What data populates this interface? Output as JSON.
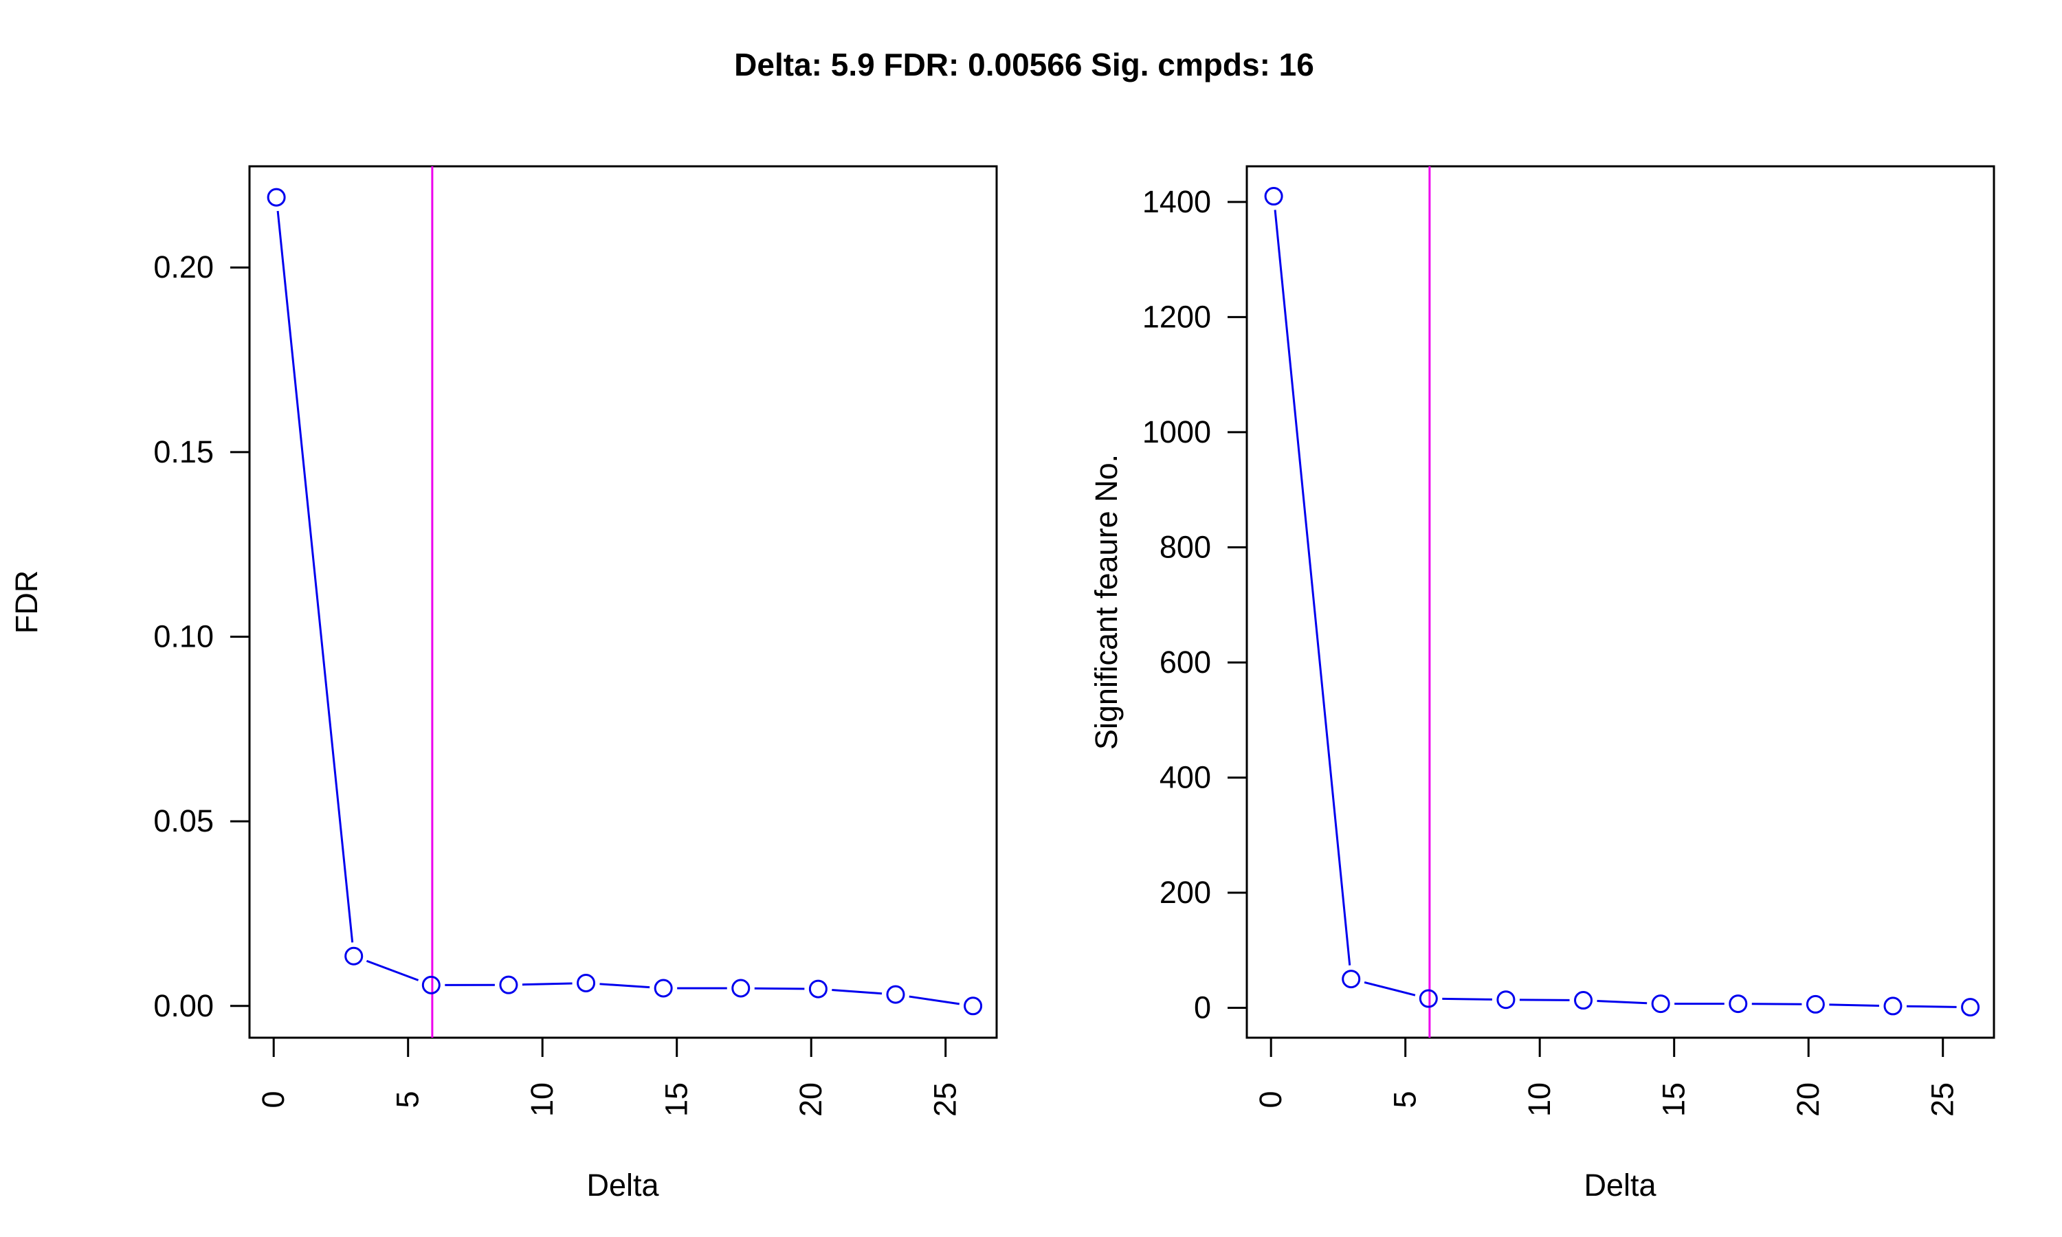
{
  "title": "Delta: 5.9  FDR: 0.00566  Sig. cmpds: 16",
  "colors": {
    "series": "#0000ee",
    "threshold": "#ee00ee",
    "axis": "#000000"
  },
  "chart_data": [
    {
      "type": "line",
      "title": "",
      "xlabel": "Delta",
      "ylabel": "FDR",
      "xlim": [
        -0.9,
        26.9
      ],
      "ylim": [
        -0.0086,
        0.2274
      ],
      "x_ticks": [
        "0",
        "5",
        "10",
        "15",
        "20",
        "25"
      ],
      "x_tick_values": [
        0,
        5,
        10,
        15,
        20,
        25
      ],
      "y_ticks": [
        "0.00",
        "0.05",
        "0.10",
        "0.15",
        "0.20"
      ],
      "y_tick_values": [
        0,
        0.05,
        0.1,
        0.15,
        0.2
      ],
      "threshold_x": 5.9,
      "grid": false,
      "series": [
        {
          "x": [
            0.1,
            2.98,
            5.86,
            8.74,
            11.62,
            14.5,
            17.38,
            20.26,
            23.14,
            26.02
          ],
          "y": [
            0.219,
            0.0135,
            0.00566,
            0.0057,
            0.0062,
            0.0048,
            0.0048,
            0.0046,
            0.0031,
            0.0
          ]
        }
      ]
    },
    {
      "type": "line",
      "title": "",
      "xlabel": "Delta",
      "ylabel": "Significant feaure No.",
      "xlim": [
        -0.9,
        26.9
      ],
      "ylim": [
        -52,
        1462
      ],
      "x_ticks": [
        "0",
        "5",
        "10",
        "15",
        "20",
        "25"
      ],
      "x_tick_values": [
        0,
        5,
        10,
        15,
        20,
        25
      ],
      "y_ticks": [
        "0",
        "200",
        "400",
        "600",
        "800",
        "1000",
        "1200",
        "1400"
      ],
      "y_tick_values": [
        0,
        200,
        400,
        600,
        800,
        1000,
        1200,
        1400
      ],
      "threshold_x": 5.9,
      "grid": false,
      "series": [
        {
          "x": [
            0.1,
            2.98,
            5.86,
            8.74,
            11.62,
            14.5,
            17.38,
            20.26,
            23.14,
            26.02
          ],
          "y": [
            1410,
            50,
            16,
            14,
            13,
            7,
            7,
            6,
            3,
            1
          ]
        }
      ]
    }
  ]
}
